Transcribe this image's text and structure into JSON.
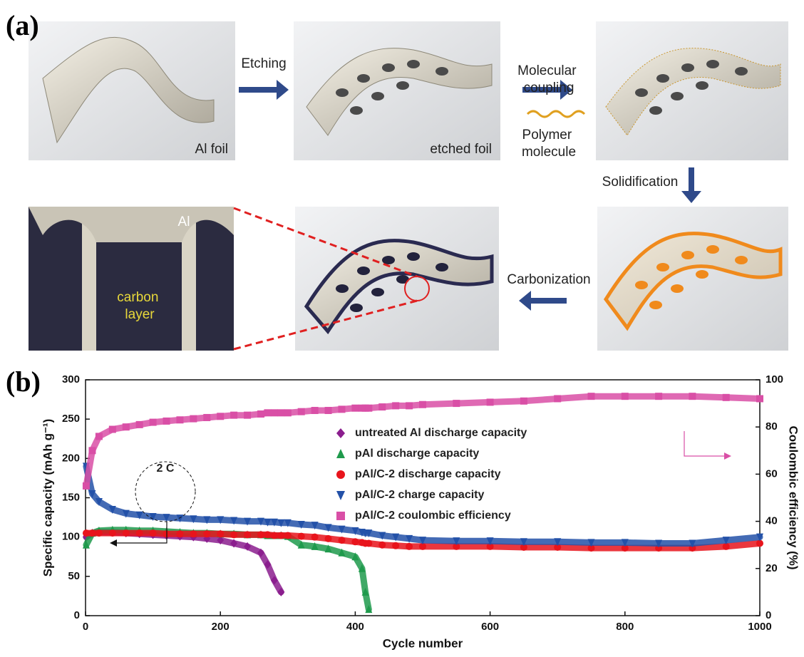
{
  "panels": [
    "(a)",
    "(b)"
  ],
  "schematic": {
    "etching": "Etching",
    "molecular_coupling": [
      "Molecular",
      "coupling"
    ],
    "polymer_molecule": [
      "Polymer",
      "molecule"
    ],
    "solidification": "Solidification",
    "carbonization": "Carbonization",
    "al_foil": "Al foil",
    "etched_foil": "etched foil",
    "al": "Al",
    "carbon_layer": [
      "carbon",
      "layer"
    ]
  },
  "chart_data": {
    "type": "scatter",
    "xlabel": "Cycle number",
    "ylabel": "Specific capacity (mAh g⁻¹)",
    "y2label": "Coulombic efficiency (%)",
    "annotation": "2 C",
    "xlim": [
      0,
      1000
    ],
    "xticks": [
      0,
      200,
      400,
      600,
      800,
      1000
    ],
    "ylim": [
      0,
      300
    ],
    "yticks": [
      0,
      50,
      100,
      150,
      200,
      250,
      300
    ],
    "y2lim": [
      0,
      100
    ],
    "y2ticks": [
      0,
      20,
      40,
      60,
      80,
      100
    ],
    "x": [
      1,
      10,
      20,
      40,
      60,
      80,
      100,
      120,
      140,
      160,
      180,
      200,
      220,
      240,
      260,
      270,
      280,
      290,
      300,
      320,
      340,
      360,
      380,
      400,
      410,
      415,
      420,
      440,
      460,
      480,
      500,
      550,
      600,
      650,
      700,
      750,
      800,
      850,
      900,
      950,
      1000
    ],
    "series": [
      {
        "name": "untreated Al discharge capacity",
        "color": "#8b1e8e",
        "marker": "diamond",
        "values": [
          100,
          105,
          106,
          106,
          105,
          104,
          103,
          102,
          101,
          100,
          98,
          96,
          92,
          88,
          80,
          65,
          45,
          30,
          null,
          null,
          null,
          null,
          null,
          null,
          null,
          null,
          null,
          null,
          null,
          null,
          null,
          null,
          null,
          null,
          null,
          null,
          null,
          null,
          null,
          null,
          null
        ]
      },
      {
        "name": "pAl discharge capacity",
        "color": "#1f9a4c",
        "marker": "triangle",
        "values": [
          90,
          105,
          108,
          109,
          109,
          108,
          108,
          107,
          106,
          105,
          105,
          104,
          104,
          103,
          103,
          102,
          102,
          102,
          101,
          90,
          88,
          85,
          80,
          75,
          60,
          30,
          8,
          null,
          null,
          null,
          null,
          null,
          null,
          null,
          null,
          null,
          null,
          null,
          null,
          null,
          null
        ]
      },
      {
        "name": "pAl/C-2 discharge capacity",
        "color": "#e8141c",
        "marker": "circle",
        "values": [
          105,
          105,
          105,
          105,
          105,
          105,
          105,
          104,
          104,
          104,
          104,
          104,
          103,
          103,
          103,
          103,
          102,
          102,
          102,
          101,
          100,
          98,
          96,
          94,
          93,
          92,
          92,
          90,
          89,
          88,
          88,
          88,
          88,
          87,
          87,
          86,
          86,
          86,
          86,
          88,
          92
        ]
      },
      {
        "name": "pAl/C-2 charge capacity",
        "color": "#2351a8",
        "marker": "triangle-down",
        "values": [
          190,
          155,
          145,
          135,
          130,
          128,
          126,
          125,
          124,
          123,
          122,
          122,
          121,
          120,
          120,
          119,
          119,
          118,
          118,
          116,
          115,
          112,
          110,
          108,
          106,
          105,
          105,
          102,
          100,
          98,
          96,
          95,
          95,
          94,
          94,
          93,
          93,
          92,
          92,
          96,
          100
        ]
      },
      {
        "name": "pAl/C-2 coulombic efficiency",
        "color": "#d94fa6",
        "marker": "square",
        "axis": "y2",
        "values": [
          55,
          70,
          76,
          79,
          80,
          81,
          82,
          82.5,
          83,
          83.5,
          84,
          84.5,
          85,
          85,
          85.5,
          86,
          86,
          86,
          86,
          86.5,
          87,
          87,
          87.5,
          88,
          88,
          88,
          88,
          88.5,
          89,
          89,
          89.5,
          90,
          90.5,
          91,
          92,
          93,
          93,
          93,
          93,
          92.5,
          92
        ]
      }
    ]
  }
}
